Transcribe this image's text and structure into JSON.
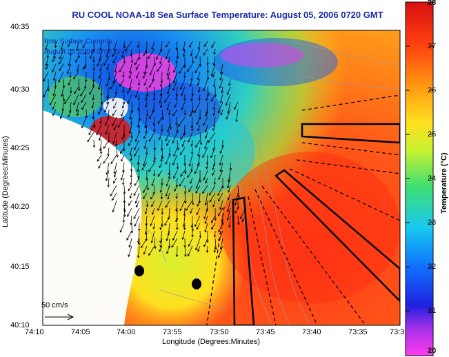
{
  "title": "RU COOL  NOAA-18  Sea Surface Temperature:  August 05, 2006 0720 GMT",
  "ylabel": "Latitude (Degrees:Minutes)",
  "xlabel": "Longitude (Degrees:Minutes)",
  "lat_ticks": [
    "40:35",
    "40:30",
    "40:25",
    "40:20",
    "40:15",
    "40:10"
  ],
  "lon_ticks": [
    "74:10",
    "74:05",
    "74:00",
    "73:55",
    "73:50",
    "73:45",
    "73:40",
    "73:35",
    "73:3"
  ],
  "legend": {
    "line1": "Raw Surface Currents",
    "line2": "August 05, 2006 0700 GMT"
  },
  "scale_label": "50 cm/s",
  "colorbar": {
    "label": "Temperature (°C)",
    "ticks": [
      "28",
      "27",
      "26",
      "25",
      "24",
      "23",
      "22",
      "21",
      "20"
    ]
  },
  "colors": {
    "title": "#1a2aa8",
    "land": "#fdfcf8",
    "ocean_warm": "#ff4a1a"
  }
}
